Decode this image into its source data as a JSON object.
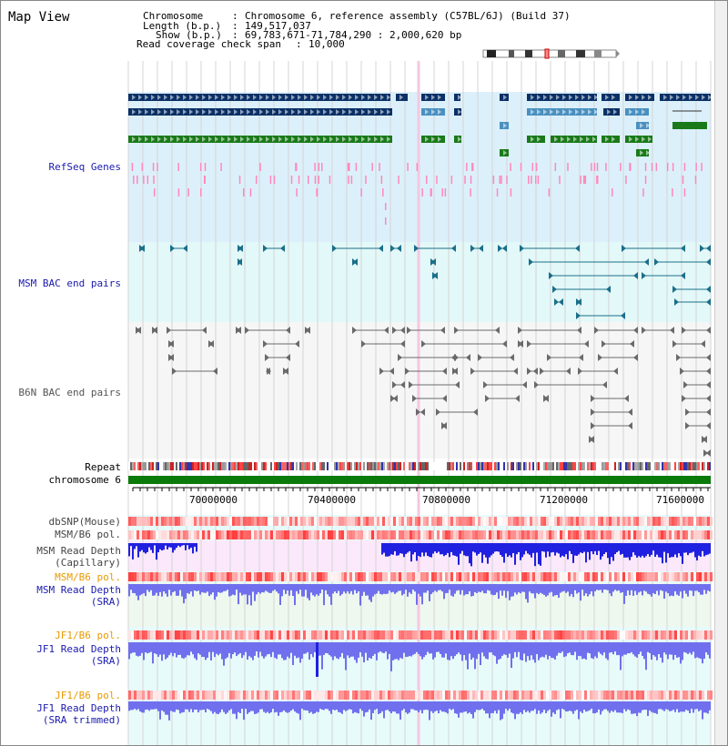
{
  "title": "Map View",
  "info": {
    "chrom_key": "Chromosome",
    "chrom_val": "Chromosome 6, reference assembly (C57BL/6J) (Build 37)",
    "length_key": "Length (b.p.)",
    "length_val": "149,517,037",
    "show_key": "Show (b.p.)",
    "show_val": "69,783,671-71,784,290 : 2,000,620 bp",
    "span_key": "Read coverage check span",
    "span_val": "10,000"
  },
  "labels": {
    "refseq": "RefSeq Genes",
    "msm_bac": "MSM BAC end pairs",
    "b6n_bac": "B6N BAC end pairs",
    "repeat": "Repeat",
    "chromosome": "chromosome 6",
    "dbsnp": "dbSNP(Mouse)",
    "msm_b6_pol_1": "MSM/B6 pol.",
    "msm_depth_cap_1": "MSM Read Depth",
    "msm_depth_cap_2": "(Capillary)",
    "msm_b6_pol_2": "MSM/B6 pol.",
    "msm_depth_sra_1": "MSM Read Depth",
    "msm_depth_sra_2": "(SRA)",
    "jf1_pol_1": "JF1/B6 pol.",
    "jf1_depth_sra_1": "JF1 Read Depth",
    "jf1_depth_sra_2": "(SRA)",
    "jf1_pol_2": "JF1/B6 pol.",
    "jf1_depth_trim_1": "JF1 Read Depth",
    "jf1_depth_trim_2": "(SRA trimmed)"
  },
  "axis": {
    "ticks": [
      "70000000",
      "70400000",
      "70800000",
      "71200000",
      "71600000"
    ]
  },
  "colors": {
    "label_blue": "#1a1ab0",
    "label_orange": "#e89a00",
    "gene_navy": "#0a3066",
    "gene_lightblue": "#4a90c0",
    "gene_green": "#1a7a1a",
    "refseq_pink": "#ff88bb",
    "chrom_green": "#0a7a0a",
    "depth_blue": "#2020e0",
    "depth_light": "#7070ee",
    "teal": "#1a6f8a"
  }
}
